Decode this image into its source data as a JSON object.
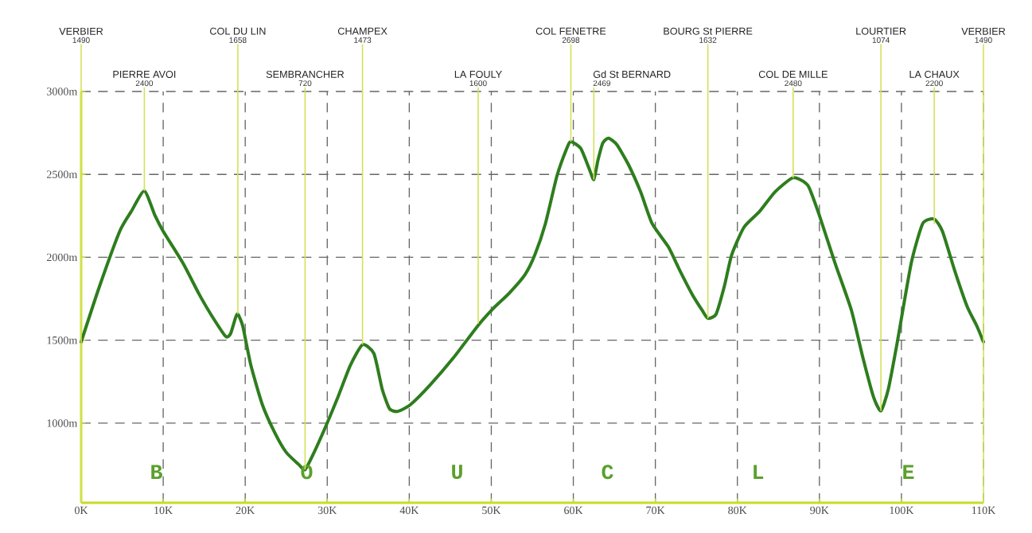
{
  "chart_data": {
    "type": "line",
    "color": "#2e7d1e",
    "line_style": "solid",
    "grid": true,
    "x": [
      0,
      2.2,
      4.7,
      6.1,
      7.7,
      9.0,
      10.0,
      12.4,
      14.4,
      15.8,
      17.6,
      18.2,
      18.8,
      19.1,
      19.7,
      20.7,
      22.1,
      23.6,
      25.0,
      26.5,
      27.3,
      28.4,
      29.9,
      31.3,
      32.8,
      34.3,
      35.7,
      36.7,
      37.6,
      38.6,
      40.1,
      42.5,
      45.4,
      48.4,
      50.2,
      52.2,
      54.1,
      55.3,
      56.6,
      58.0,
      59.2,
      59.7,
      60.9,
      61.9,
      62.5,
      63.0,
      63.6,
      64.3,
      65.3,
      66.7,
      68.2,
      69.6,
      71.6,
      73.0,
      74.5,
      75.7,
      76.4,
      77.4,
      78.4,
      79.3,
      80.8,
      82.7,
      84.6,
      86.8,
      88.6,
      90.0,
      91.9,
      93.9,
      95.3,
      96.6,
      97.5,
      98.4,
      99.5,
      101.2,
      102.6,
      104.0,
      105.0,
      106.5,
      108.0,
      109.2,
      110
    ],
    "values": [
      1490,
      1820,
      2157,
      2276,
      2400,
      2252,
      2157,
      1966,
      1776,
      1657,
      1524,
      1538,
      1633,
      1658,
      1585,
      1347,
      1110,
      943,
      824,
      752,
      720,
      824,
      990,
      1157,
      1347,
      1473,
      1419,
      1205,
      1086,
      1071,
      1110,
      1228,
      1395,
      1590,
      1690,
      1785,
      1895,
      2014,
      2204,
      2490,
      2657,
      2698,
      2657,
      2538,
      2469,
      2585,
      2690,
      2718,
      2680,
      2561,
      2395,
      2204,
      2062,
      1919,
      1776,
      1681,
      1632,
      1657,
      1823,
      2014,
      2181,
      2276,
      2395,
      2480,
      2433,
      2252,
      1966,
      1681,
      1395,
      1157,
      1074,
      1205,
      1490,
      1966,
      2204,
      2230,
      2157,
      1919,
      1705,
      1585,
      1490
    ],
    "xlim": [
      0,
      110
    ],
    "ylim": [
      520,
      3000
    ],
    "xticks": [
      {
        "value": 0,
        "label": "0K"
      },
      {
        "value": 10,
        "label": "10K"
      },
      {
        "value": 20,
        "label": "20K"
      },
      {
        "value": 30,
        "label": "30K"
      },
      {
        "value": 40,
        "label": "40K"
      },
      {
        "value": 50,
        "label": "50K"
      },
      {
        "value": 60,
        "label": "60K"
      },
      {
        "value": 70,
        "label": "70K"
      },
      {
        "value": 80,
        "label": "80K"
      },
      {
        "value": 90,
        "label": "90K"
      },
      {
        "value": 100,
        "label": "100K"
      },
      {
        "value": 110,
        "label": "110K"
      }
    ],
    "yticks": [
      {
        "value": 1000,
        "label": "1000m"
      },
      {
        "value": 1500,
        "label": "1500m"
      },
      {
        "value": 2000,
        "label": "2000m"
      },
      {
        "value": 2500,
        "label": "2500m"
      },
      {
        "value": 3000,
        "label": "3000m"
      }
    ],
    "annotations": [
      {
        "text": "VERBIER"
      },
      "1490",
      {
        "text": "PIERRE AVOI",
        "x": 7.7,
        "y": 2400
      },
      "2400",
      {
        "text": "COL DU LIN",
        "x": 19.1,
        "y": 1658
      },
      "1658",
      {
        "text": "SEMBRANCHER",
        "x": 27.3,
        "y": 720
      },
      "720",
      {
        "text": "CHAMPEX",
        "x": 34.3,
        "y": 1473
      },
      "1473",
      {
        "text": "LA FOULY",
        "x": 48.4,
        "y": 1600
      },
      "1600",
      {
        "text": "COL FENETRE",
        "x": 59.7,
        "y": 2698
      },
      "2698",
      {
        "text": "Gd St BERNARD",
        "x": 62.5,
        "y": 2469
      },
      "2469",
      {
        "text": "BOURG St PIERRE",
        "x": 76.4,
        "y": 1632
      },
      "1632",
      {
        "text": "COL DE MILLE",
        "x": 86.8,
        "y": 2480
      },
      "2480",
      {
        "text": "LOURTIER",
        "x": 97.5,
        "y": 1074
      },
      "1074",
      {
        "text": "LA CHAUX",
        "x": 104.0,
        "y": 2200
      },
      "2200",
      {
        "text": "VERBIER"
      },
      "1490",
      "B",
      "O",
      "U",
      "C",
      "L",
      "E"
    ]
  }
}
